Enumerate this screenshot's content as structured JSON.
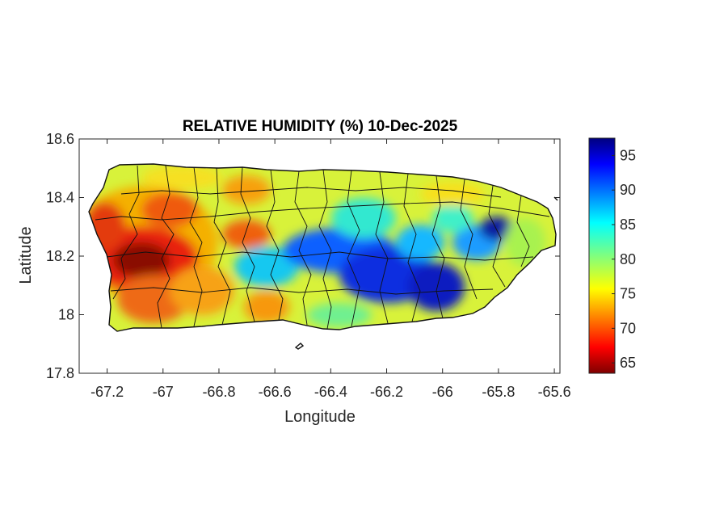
{
  "map": {
    "title": "RELATIVE HUMIDITY (%) 10-Dec-2025",
    "xlabel": "Longitude",
    "ylabel": "Latitude",
    "xlim": [
      -67.3,
      -65.58
    ],
    "ylim": [
      17.8,
      18.6
    ],
    "xticks": [
      "-67.2",
      "-67",
      "-66.8",
      "-66.6",
      "-66.4",
      "-66.2",
      "-66",
      "-65.8",
      "-65.6"
    ],
    "yticks": [
      "18.6",
      "18.4",
      "18.2",
      "18",
      "17.8"
    ],
    "region": "Puerto Rico",
    "colormap": "jet",
    "colorbar": {
      "min": 63.5,
      "max": 97.5,
      "ticks": [
        "95",
        "90",
        "85",
        "80",
        "75",
        "70",
        "65"
      ]
    }
  }
}
